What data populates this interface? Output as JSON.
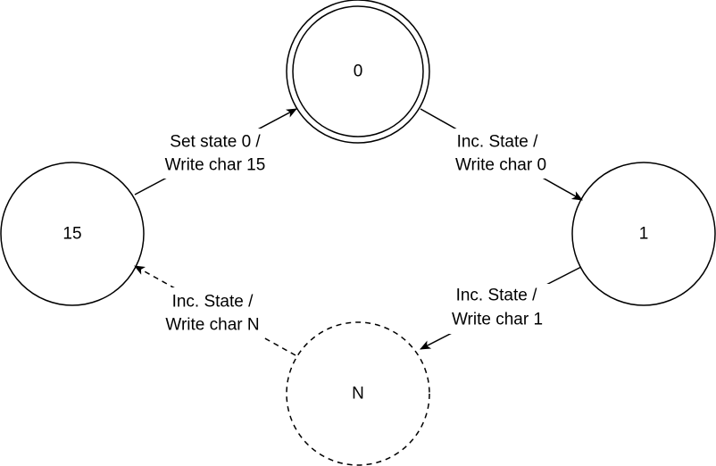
{
  "diagram": {
    "states": [
      {
        "id": "s0",
        "label": "0",
        "style": "accept"
      },
      {
        "id": "s1",
        "label": "1",
        "style": "normal"
      },
      {
        "id": "sn",
        "label": "N",
        "style": "dashed"
      },
      {
        "id": "s15",
        "label": "15",
        "style": "normal"
      }
    ],
    "transitions": [
      {
        "from": "s0",
        "to": "s1",
        "line1": "Inc. State /",
        "line2": "Write char 0",
        "style": "solid"
      },
      {
        "from": "s1",
        "to": "sn",
        "line1": "Inc. State /",
        "line2": "Write char 1",
        "style": "solid"
      },
      {
        "from": "sn",
        "to": "s15",
        "line1": "Inc. State /",
        "line2": "Write char N",
        "style": "dashed"
      },
      {
        "from": "s15",
        "to": "s0",
        "line1": "Set state 0 /",
        "line2": "Write char 15",
        "style": "solid"
      }
    ]
  },
  "colors": {
    "stroke": "#000000",
    "background": "#ffffff"
  }
}
